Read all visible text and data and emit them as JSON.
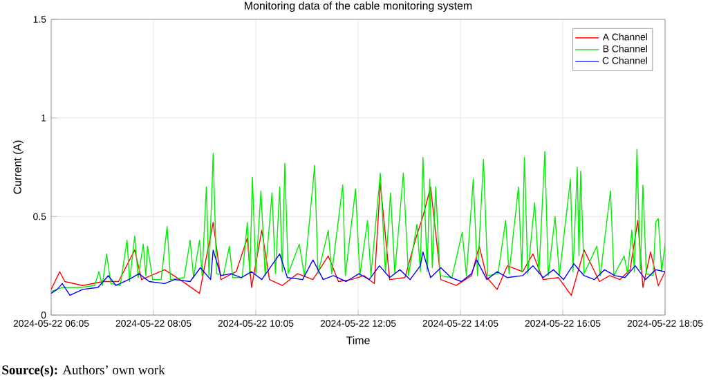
{
  "chart_data": {
    "type": "line",
    "title": "Monitoring data of the cable monitoring system",
    "xlabel": "Time",
    "ylabel": "Current (A)",
    "xlim": [
      "2024-05-22T06:05",
      "2024-05-22T18:05"
    ],
    "ylim": [
      0,
      1.5
    ],
    "xticks": [
      {
        "value": "2024-05-22T06:05",
        "label": "2024-05-22 06:05"
      },
      {
        "value": "2024-05-22T08:05",
        "label": "2024-05-22 08:05"
      },
      {
        "value": "2024-05-22T10:05",
        "label": "2024-05-22 10:05"
      },
      {
        "value": "2024-05-22T12:05",
        "label": "2024-05-22 12:05"
      },
      {
        "value": "2024-05-22T14:05",
        "label": "2024-05-22 14:05"
      },
      {
        "value": "2024-05-22T16:05",
        "label": "2024-05-22 16:05"
      },
      {
        "value": "2024-05-22T18:05",
        "label": "2024-05-22 18:05"
      }
    ],
    "yticks": [
      0,
      0.5,
      1,
      1.5
    ],
    "grid": true,
    "legend": "top right",
    "series": [
      {
        "name": "A Channel",
        "color": "#ff0000",
        "x": [
          "2024-05-22T06:05",
          "2024-05-22T06:15",
          "2024-05-22T06:21",
          "2024-05-22T06:42",
          "2024-05-22T07:06",
          "2024-05-22T07:24",
          "2024-05-22T07:43",
          "2024-05-22T07:51",
          "2024-05-22T08:18",
          "2024-05-22T08:36",
          "2024-05-22T08:59",
          "2024-05-22T09:06",
          "2024-05-22T09:15",
          "2024-05-22T09:24",
          "2024-05-22T09:42",
          "2024-05-22T09:55",
          "2024-05-22T10:00",
          "2024-05-22T10:12",
          "2024-05-22T10:21",
          "2024-05-22T10:36",
          "2024-05-22T10:54",
          "2024-05-22T11:12",
          "2024-05-22T11:30",
          "2024-05-22T11:42",
          "2024-05-22T11:57",
          "2024-05-22T12:12",
          "2024-05-22T12:24",
          "2024-05-22T12:31",
          "2024-05-22T12:42",
          "2024-05-22T13:00",
          "2024-05-22T13:12",
          "2024-05-22T13:21",
          "2024-05-22T13:30",
          "2024-05-22T13:42",
          "2024-05-22T14:00",
          "2024-05-22T14:18",
          "2024-05-22T14:27",
          "2024-05-22T14:36",
          "2024-05-22T14:48",
          "2024-05-22T15:00",
          "2024-05-22T15:18",
          "2024-05-22T15:30",
          "2024-05-22T15:42",
          "2024-05-22T16:00",
          "2024-05-22T16:15",
          "2024-05-22T16:30",
          "2024-05-22T16:48",
          "2024-05-22T17:00",
          "2024-05-22T17:12",
          "2024-05-22T17:24",
          "2024-05-22T17:33",
          "2024-05-22T17:39",
          "2024-05-22T17:48",
          "2024-05-22T17:57",
          "2024-05-22T18:05"
        ],
        "values": [
          0.13,
          0.22,
          0.17,
          0.15,
          0.17,
          0.17,
          0.33,
          0.18,
          0.23,
          0.18,
          0.11,
          0.27,
          0.47,
          0.18,
          0.22,
          0.39,
          0.14,
          0.43,
          0.18,
          0.15,
          0.21,
          0.18,
          0.3,
          0.17,
          0.18,
          0.2,
          0.16,
          0.67,
          0.18,
          0.19,
          0.38,
          0.5,
          0.65,
          0.18,
          0.15,
          0.2,
          0.35,
          0.19,
          0.13,
          0.25,
          0.22,
          0.31,
          0.18,
          0.19,
          0.1,
          0.33,
          0.17,
          0.2,
          0.18,
          0.23,
          0.48,
          0.14,
          0.32,
          0.15,
          0.22
        ]
      },
      {
        "name": "B Channel",
        "color": "#00ee00",
        "x": [
          "2024-05-22T06:05",
          "2024-05-22T06:18",
          "2024-05-22T06:40",
          "2024-05-22T06:56",
          "2024-05-22T07:01",
          "2024-05-22T07:05",
          "2024-05-22T07:10",
          "2024-05-22T07:15",
          "2024-05-22T07:26",
          "2024-05-22T07:34",
          "2024-05-22T07:37",
          "2024-05-22T07:43",
          "2024-05-22T07:47",
          "2024-05-22T07:53",
          "2024-05-22T07:56",
          "2024-05-22T07:58",
          "2024-05-22T08:04",
          "2024-05-22T08:14",
          "2024-05-22T08:21",
          "2024-05-22T08:25",
          "2024-05-22T08:41",
          "2024-05-22T08:48",
          "2024-05-22T08:52",
          "2024-05-22T08:59",
          "2024-05-22T09:02",
          "2024-05-22T09:07",
          "2024-05-22T09:10",
          "2024-05-22T09:15",
          "2024-05-22T09:19",
          "2024-05-22T09:27",
          "2024-05-22T09:34",
          "2024-05-22T09:38",
          "2024-05-22T09:49",
          "2024-05-22T09:55",
          "2024-05-22T09:58",
          "2024-05-22T10:01",
          "2024-05-22T10:05",
          "2024-05-22T10:11",
          "2024-05-22T10:16",
          "2024-05-22T10:24",
          "2024-05-22T10:28",
          "2024-05-22T10:33",
          "2024-05-22T10:36",
          "2024-05-22T10:39",
          "2024-05-22T10:43",
          "2024-05-22T10:56",
          "2024-05-22T11:02",
          "2024-05-22T11:14",
          "2024-05-22T11:18",
          "2024-05-22T11:30",
          "2024-05-22T11:34",
          "2024-05-22T11:47",
          "2024-05-22T11:50",
          "2024-05-22T12:02",
          "2024-05-22T12:07",
          "2024-05-22T12:16",
          "2024-05-22T12:20",
          "2024-05-22T12:31",
          "2024-05-22T12:37",
          "2024-05-22T12:43",
          "2024-05-22T12:48",
          "2024-05-22T12:58",
          "2024-05-22T13:04",
          "2024-05-22T13:14",
          "2024-05-22T13:18",
          "2024-05-22T13:21",
          "2024-05-22T13:26",
          "2024-05-22T13:29",
          "2024-05-22T13:32",
          "2024-05-22T13:36",
          "2024-05-22T13:41",
          "2024-05-22T13:55",
          "2024-05-22T14:07",
          "2024-05-22T14:12",
          "2024-05-22T14:20",
          "2024-05-22T14:25",
          "2024-05-22T14:32",
          "2024-05-22T14:37",
          "2024-05-22T14:49",
          "2024-05-22T14:58",
          "2024-05-22T15:02",
          "2024-05-22T15:13",
          "2024-05-22T15:17",
          "2024-05-22T15:20",
          "2024-05-22T15:24",
          "2024-05-22T15:32",
          "2024-05-22T15:37",
          "2024-05-22T15:44",
          "2024-05-22T15:48",
          "2024-05-22T15:56",
          "2024-05-22T16:01",
          "2024-05-22T16:14",
          "2024-05-22T16:17",
          "2024-05-22T16:22",
          "2024-05-22T16:24",
          "2024-05-22T16:26",
          "2024-05-22T16:30",
          "2024-05-22T16:45",
          "2024-05-22T16:49",
          "2024-05-22T17:01",
          "2024-05-22T17:05",
          "2024-05-22T17:17",
          "2024-05-22T17:21",
          "2024-05-22T17:26",
          "2024-05-22T17:29",
          "2024-05-22T17:32",
          "2024-05-22T17:36",
          "2024-05-22T17:39",
          "2024-05-22T17:43",
          "2024-05-22T17:51",
          "2024-05-22T17:54",
          "2024-05-22T17:57",
          "2024-05-22T18:01",
          "2024-05-22T18:05"
        ],
        "values": [
          0.12,
          0.14,
          0.14,
          0.15,
          0.22,
          0.15,
          0.31,
          0.16,
          0.15,
          0.38,
          0.17,
          0.4,
          0.19,
          0.36,
          0.2,
          0.35,
          0.18,
          0.18,
          0.45,
          0.18,
          0.19,
          0.38,
          0.19,
          0.38,
          0.2,
          0.65,
          0.2,
          0.82,
          0.21,
          0.2,
          0.35,
          0.19,
          0.19,
          0.47,
          0.2,
          0.7,
          0.21,
          0.63,
          0.2,
          0.62,
          0.21,
          0.65,
          0.22,
          0.77,
          0.21,
          0.36,
          0.2,
          0.76,
          0.21,
          0.43,
          0.21,
          0.66,
          0.2,
          0.64,
          0.2,
          0.48,
          0.2,
          0.72,
          0.22,
          0.62,
          0.21,
          0.72,
          0.2,
          0.46,
          0.22,
          0.8,
          0.22,
          0.69,
          0.24,
          0.65,
          0.2,
          0.19,
          0.42,
          0.2,
          0.69,
          0.2,
          0.79,
          0.2,
          0.21,
          0.48,
          0.21,
          0.65,
          0.22,
          0.8,
          0.21,
          0.57,
          0.21,
          0.83,
          0.2,
          0.5,
          0.2,
          0.69,
          0.22,
          0.75,
          0.3,
          0.73,
          0.21,
          0.35,
          0.2,
          0.63,
          0.2,
          0.3,
          0.21,
          0.43,
          0.22,
          0.84,
          0.23,
          0.66,
          0.21,
          0.2,
          0.47,
          0.49,
          0.22,
          0.36
        ]
      },
      {
        "name": "C Channel",
        "color": "#0000ff",
        "x": [
          "2024-05-22T06:05",
          "2024-05-22T06:12",
          "2024-05-22T06:18",
          "2024-05-22T06:27",
          "2024-05-22T06:42",
          "2024-05-22T07:00",
          "2024-05-22T07:12",
          "2024-05-22T07:21",
          "2024-05-22T07:36",
          "2024-05-22T07:48",
          "2024-05-22T08:00",
          "2024-05-22T08:18",
          "2024-05-22T08:30",
          "2024-05-22T08:48",
          "2024-05-22T09:00",
          "2024-05-22T09:12",
          "2024-05-22T09:15",
          "2024-05-22T09:24",
          "2024-05-22T09:36",
          "2024-05-22T09:48",
          "2024-05-22T10:00",
          "2024-05-22T10:12",
          "2024-05-22T10:33",
          "2024-05-22T10:42",
          "2024-05-22T11:00",
          "2024-05-22T11:12",
          "2024-05-22T11:24",
          "2024-05-22T11:36",
          "2024-05-22T11:51",
          "2024-05-22T12:06",
          "2024-05-22T12:18",
          "2024-05-22T12:30",
          "2024-05-22T12:42",
          "2024-05-22T12:54",
          "2024-05-22T13:06",
          "2024-05-22T13:18",
          "2024-05-22T13:21",
          "2024-05-22T13:30",
          "2024-05-22T13:42",
          "2024-05-22T13:54",
          "2024-05-22T14:06",
          "2024-05-22T14:18",
          "2024-05-22T14:24",
          "2024-05-22T14:36",
          "2024-05-22T14:48",
          "2024-05-22T15:00",
          "2024-05-22T15:18",
          "2024-05-22T15:30",
          "2024-05-22T15:42",
          "2024-05-22T15:54",
          "2024-05-22T16:06",
          "2024-05-22T16:18",
          "2024-05-22T16:30",
          "2024-05-22T16:42",
          "2024-05-22T16:54",
          "2024-05-22T17:06",
          "2024-05-22T17:18",
          "2024-05-22T17:30",
          "2024-05-22T17:42",
          "2024-05-22T17:54",
          "2024-05-22T18:05"
        ],
        "values": [
          0.11,
          0.13,
          0.16,
          0.1,
          0.13,
          0.14,
          0.2,
          0.15,
          0.18,
          0.21,
          0.17,
          0.16,
          0.18,
          0.17,
          0.24,
          0.18,
          0.33,
          0.2,
          0.21,
          0.19,
          0.22,
          0.18,
          0.31,
          0.19,
          0.18,
          0.28,
          0.18,
          0.2,
          0.17,
          0.21,
          0.18,
          0.25,
          0.19,
          0.23,
          0.18,
          0.25,
          0.32,
          0.19,
          0.24,
          0.19,
          0.17,
          0.21,
          0.28,
          0.18,
          0.22,
          0.19,
          0.2,
          0.25,
          0.19,
          0.23,
          0.18,
          0.26,
          0.2,
          0.18,
          0.23,
          0.2,
          0.19,
          0.25,
          0.18,
          0.23,
          0.22
        ]
      }
    ],
    "annotations": [
      "**Source(s):** Authors’ own work"
    ]
  }
}
